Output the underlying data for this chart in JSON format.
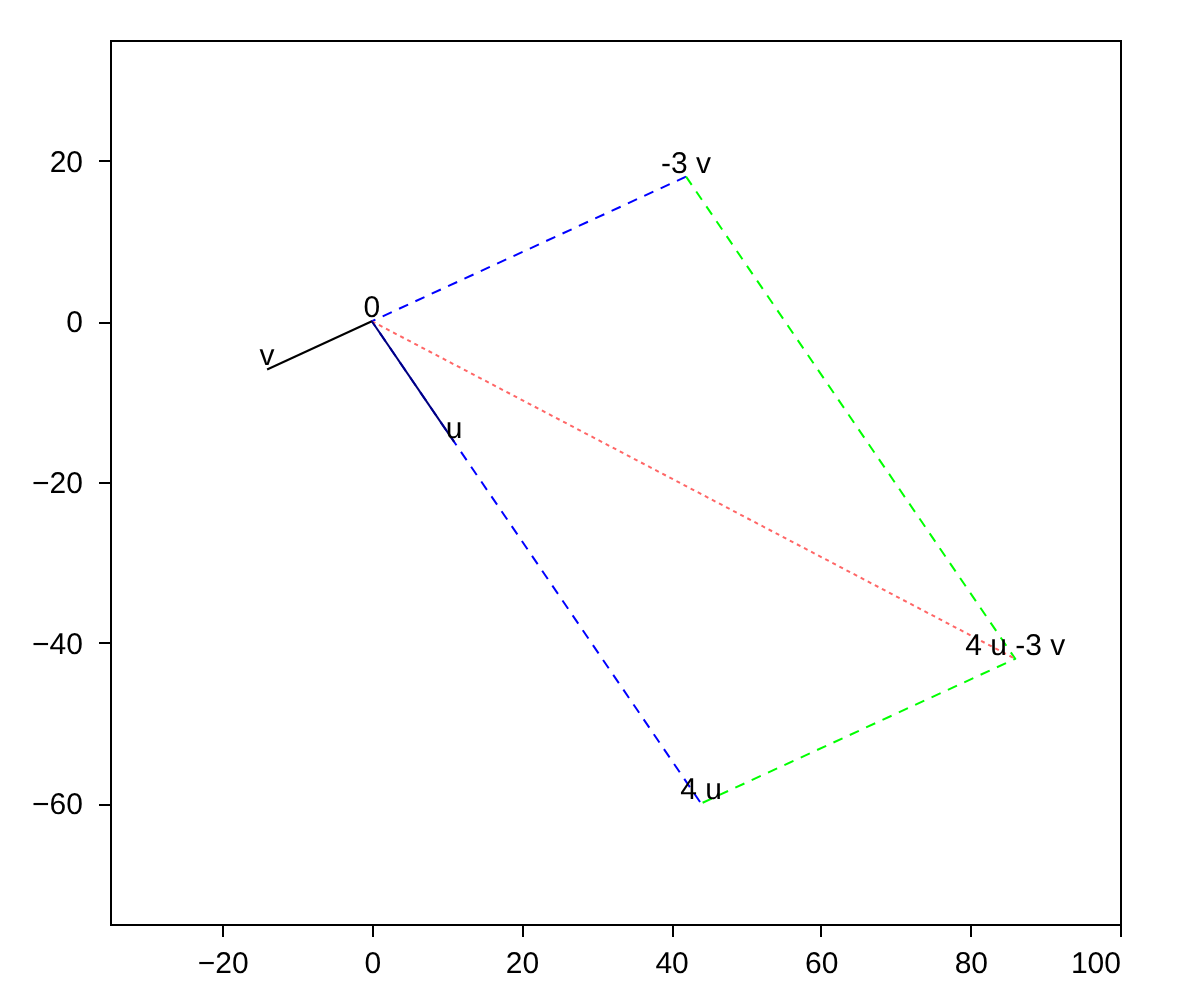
{
  "chart_data": {
    "type": "line",
    "xlim": [
      -35,
      100
    ],
    "ylim": [
      -75,
      35
    ],
    "xticks": [
      -20,
      0,
      20,
      40,
      60,
      80,
      100
    ],
    "yticks": [
      -60,
      -40,
      -20,
      0,
      20
    ],
    "grid": false,
    "marker": "none",
    "series": [
      {
        "color": "#0000ff",
        "line_style": "dashed",
        "x": [
          42,
          0,
          44
        ],
        "values": [
          18,
          0,
          -60
        ]
      },
      {
        "color": "#00ff00",
        "line_style": "dashed",
        "x": [
          42,
          86,
          44
        ],
        "values": [
          18,
          -42,
          -60
        ]
      },
      {
        "color": "#ff6666",
        "line_style": "dotted",
        "x": [
          0,
          86
        ],
        "values": [
          0,
          -42
        ]
      },
      {
        "color": "#000000",
        "line_style": "solid",
        "x": [
          0,
          -14
        ],
        "values": [
          0,
          -6
        ]
      },
      {
        "color": "#000080",
        "line_style": "solid",
        "x": [
          0,
          11
        ],
        "values": [
          0,
          -15
        ]
      }
    ],
    "annotations": [
      {
        "text": "0",
        "x": 0,
        "y": 0
      },
      {
        "text": "v",
        "x": -14,
        "y": -6
      },
      {
        "text": "u",
        "x": 11,
        "y": -15
      },
      {
        "text": "-3 v",
        "x": 42,
        "y": 18
      },
      {
        "text": "4 u",
        "x": 44,
        "y": -60
      },
      {
        "text": "4 u -3 v",
        "x": 86,
        "y": -42
      }
    ]
  }
}
